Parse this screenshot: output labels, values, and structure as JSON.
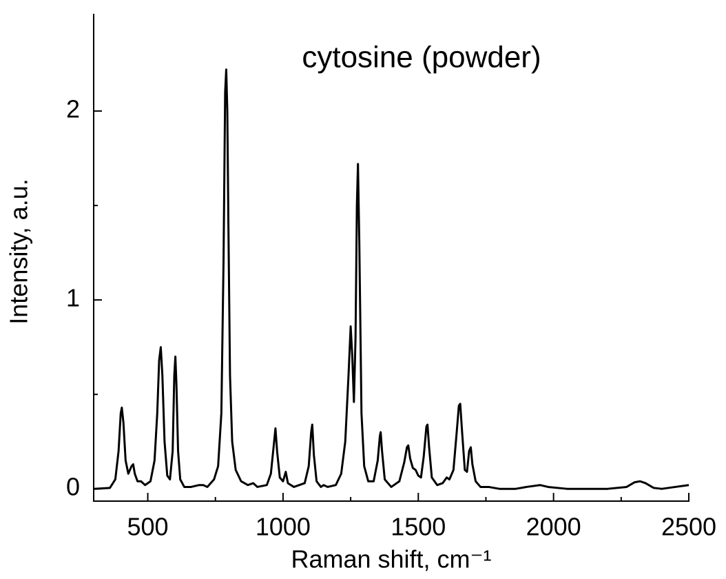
{
  "chart_data": {
    "type": "line",
    "title": "cytosine (powder)",
    "xlabel": "Raman shift, cm⁻¹",
    "ylabel": "Intensity, a.u.",
    "color": "#000000",
    "xlim": [
      300,
      2500
    ],
    "ylim": [
      -0.065,
      2.515
    ],
    "xticks": [
      500,
      1000,
      1500,
      2000,
      2500
    ],
    "yticks": [
      0,
      1,
      2
    ],
    "xminorticks": [
      750,
      1250,
      1750,
      2250
    ],
    "yminorticks": [
      0.5,
      1.5
    ],
    "x": [
      300,
      360,
      380,
      392,
      400,
      404,
      410,
      418,
      428,
      440,
      446,
      452,
      462,
      475,
      490,
      510,
      525,
      535,
      542,
      548,
      554,
      562,
      572,
      582,
      592,
      598,
      602,
      606,
      612,
      620,
      635,
      660,
      690,
      705,
      720,
      745,
      760,
      772,
      780,
      786,
      790,
      794,
      798,
      804,
      812,
      825,
      845,
      870,
      890,
      905,
      940,
      955,
      965,
      972,
      978,
      988,
      1000,
      1010,
      1018,
      1040,
      1080,
      1095,
      1104,
      1108,
      1114,
      1124,
      1140,
      1150,
      1165,
      1195,
      1215,
      1230,
      1242,
      1250,
      1256,
      1262,
      1268,
      1273,
      1277,
      1282,
      1290,
      1300,
      1315,
      1335,
      1350,
      1358,
      1361,
      1366,
      1376,
      1400,
      1430,
      1448,
      1458,
      1463,
      1470,
      1480,
      1490,
      1500,
      1510,
      1520,
      1530,
      1534,
      1540,
      1550,
      1570,
      1590,
      1600,
      1605,
      1615,
      1630,
      1642,
      1650,
      1655,
      1662,
      1672,
      1680,
      1688,
      1694,
      1700,
      1712,
      1730,
      1760,
      1800,
      1860,
      1900,
      1950,
      1980,
      2050,
      2200,
      2270,
      2300,
      2320,
      2340,
      2370,
      2400,
      2450,
      2500
    ],
    "y": [
      0,
      0.005,
      0.05,
      0.2,
      0.4,
      0.43,
      0.35,
      0.15,
      0.08,
      0.12,
      0.13,
      0.08,
      0.04,
      0.04,
      0.02,
      0.04,
      0.15,
      0.4,
      0.68,
      0.75,
      0.6,
      0.25,
      0.07,
      0.05,
      0.2,
      0.6,
      0.7,
      0.55,
      0.2,
      0.05,
      0.01,
      0.01,
      0.02,
      0.02,
      0.01,
      0.05,
      0.12,
      0.4,
      1.2,
      2.1,
      2.22,
      2.0,
      1.4,
      0.6,
      0.25,
      0.1,
      0.04,
      0.02,
      0.03,
      0.01,
      0.02,
      0.08,
      0.22,
      0.32,
      0.2,
      0.06,
      0.04,
      0.09,
      0.03,
      0.01,
      0.03,
      0.12,
      0.3,
      0.34,
      0.18,
      0.04,
      0.01,
      0.02,
      0.01,
      0.02,
      0.08,
      0.25,
      0.6,
      0.86,
      0.7,
      0.46,
      0.8,
      1.5,
      1.72,
      1.3,
      0.4,
      0.12,
      0.04,
      0.04,
      0.15,
      0.28,
      0.3,
      0.2,
      0.05,
      0.01,
      0.04,
      0.14,
      0.22,
      0.23,
      0.16,
      0.11,
      0.1,
      0.07,
      0.06,
      0.17,
      0.33,
      0.34,
      0.22,
      0.06,
      0.02,
      0.03,
      0.05,
      0.06,
      0.05,
      0.1,
      0.3,
      0.44,
      0.45,
      0.3,
      0.1,
      0.09,
      0.2,
      0.22,
      0.13,
      0.04,
      0.01,
      0.01,
      0,
      0,
      0.01,
      0.02,
      0.01,
      0,
      0,
      0.01,
      0.035,
      0.04,
      0.03,
      0.005,
      0,
      0.01,
      0.02
    ]
  }
}
